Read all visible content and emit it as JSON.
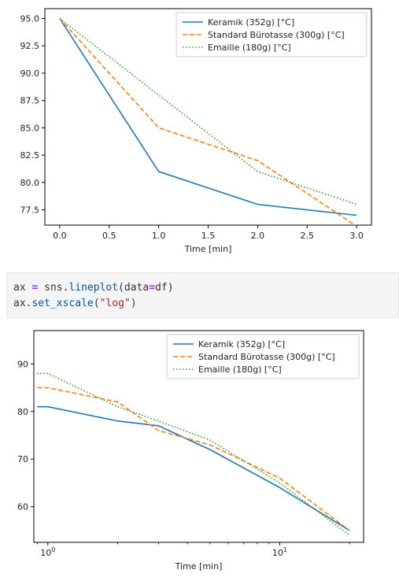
{
  "code": {
    "line1": {
      "var": "ax",
      "op1": "=",
      "lib": "sns",
      "dot": ".",
      "fn": "lineplot",
      "open": "(",
      "arg": "data",
      "op2": "=",
      "val": "df",
      "close": ")"
    },
    "line2": {
      "var": "ax",
      "dot": ".",
      "fn": "set_xscale",
      "open": "(",
      "str": "\"log\"",
      "close": ")"
    }
  },
  "chart_data": [
    {
      "type": "line",
      "xlabel": "Time [min]",
      "ylabel": "",
      "xscale": "linear",
      "xlim": [
        -0.15,
        3.15
      ],
      "ylim": [
        76.1,
        95.9
      ],
      "xticks": [
        0.0,
        0.5,
        1.0,
        1.5,
        2.0,
        2.5,
        3.0
      ],
      "xtick_labels": [
        "0.0",
        "0.5",
        "1.0",
        "1.5",
        "2.0",
        "2.5",
        "3.0"
      ],
      "yticks": [
        77.5,
        80.0,
        82.5,
        85.0,
        87.5,
        90.0,
        92.5,
        95.0
      ],
      "ytick_labels": [
        "77.5",
        "80.0",
        "82.5",
        "85.0",
        "87.5",
        "90.0",
        "92.5",
        "95.0"
      ],
      "grid": false,
      "legend_position": "top-right",
      "series": [
        {
          "name": "Keramik (352g) [°C]",
          "color": "#1f77b4",
          "dash": "solid",
          "x": [
            0,
            1,
            2,
            3
          ],
          "y": [
            95,
            81,
            78,
            77
          ]
        },
        {
          "name": "Standard Bürotasse (300g) [°C]",
          "color": "#ff7f0e",
          "dash": "dashed",
          "x": [
            0,
            1,
            2,
            3
          ],
          "y": [
            95,
            85,
            82,
            76
          ]
        },
        {
          "name": "Emaille (180g) [°C]",
          "color": "#2ca02c",
          "dash": "dotted",
          "x": [
            0,
            1,
            2,
            3
          ],
          "y": [
            95,
            88,
            81,
            78
          ]
        }
      ]
    },
    {
      "type": "line",
      "xlabel": "Time [min]",
      "ylabel": "",
      "xscale": "log",
      "xlim": [
        0.87,
        23
      ],
      "ylim": [
        52.5,
        97
      ],
      "xticks": [
        1,
        10
      ],
      "xtick_labels": [
        {
          "base": "10",
          "exp": "0"
        },
        {
          "base": "10",
          "exp": "1"
        }
      ],
      "yticks": [
        60,
        70,
        80,
        90
      ],
      "ytick_labels": [
        "60",
        "70",
        "80",
        "90"
      ],
      "grid": false,
      "legend_position": "top-right",
      "series": [
        {
          "name": "Keramik (352g) [°C]",
          "color": "#1f77b4",
          "dash": "solid",
          "x": [
            0.9,
            1,
            2,
            3,
            5,
            10,
            20
          ],
          "y": [
            81,
            81,
            78,
            77,
            72,
            64,
            55
          ]
        },
        {
          "name": "Standard Bürotasse (300g) [°C]",
          "color": "#ff7f0e",
          "dash": "dashed",
          "x": [
            0.9,
            1,
            2,
            3,
            5,
            10,
            20
          ],
          "y": [
            85,
            85,
            82,
            76,
            73,
            66,
            55
          ]
        },
        {
          "name": "Emaille (180g) [°C]",
          "color": "#2ca02c",
          "dash": "dotted",
          "x": [
            0.9,
            1,
            2,
            3,
            5,
            10,
            20
          ],
          "y": [
            88,
            88,
            81,
            78,
            74,
            65,
            54
          ]
        }
      ]
    }
  ]
}
